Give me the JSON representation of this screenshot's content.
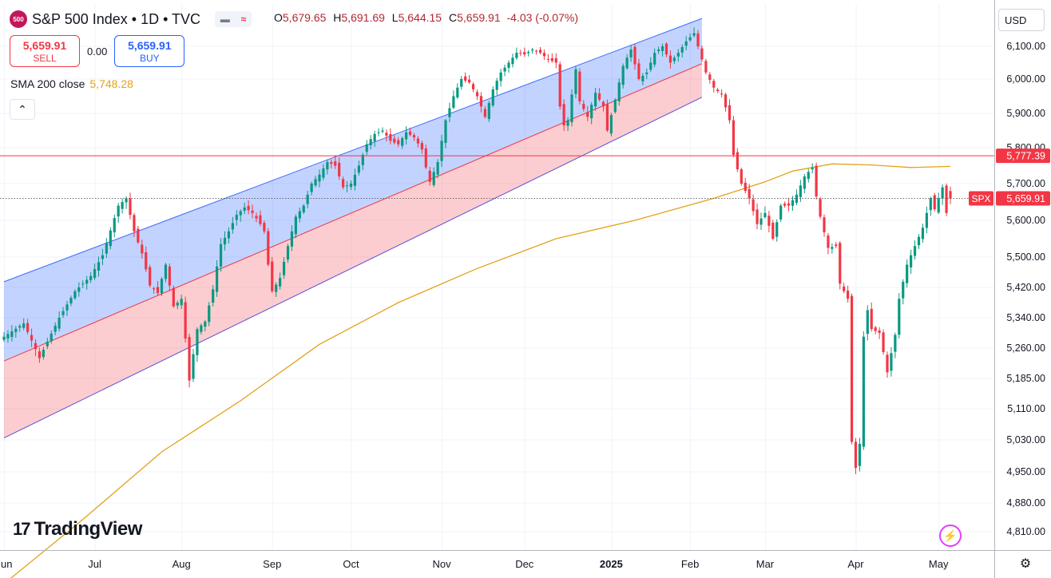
{
  "header": {
    "symbol_badge": "500",
    "title": "S&P 500 Index • 1D • TVC",
    "ohlc": {
      "o_label": "O",
      "o": "5,679.65",
      "h_label": "H",
      "h": "5,691.69",
      "l_label": "L",
      "l": "5,644.15",
      "c_label": "C",
      "c": "5,659.91",
      "change": "-4.03 (-0.07%)"
    }
  },
  "trade": {
    "sell_price": "5,659.91",
    "sell_label": "SELL",
    "spread": "0.00",
    "buy_price": "5,659.91",
    "buy_label": "BUY"
  },
  "indicator": {
    "name": "SMA 200 close",
    "value": "5,748.28",
    "color": "#e3a21a"
  },
  "currency": "USD",
  "brand": {
    "logo_mark": "17",
    "logo_text": "TradingView"
  },
  "colors": {
    "up": "#089981",
    "down": "#f23645",
    "sma": "#e3a21a",
    "channel_upper": "#3d6cff",
    "channel_lower": "#f23645",
    "grid": "#f0f3fa"
  },
  "chart_data": {
    "type": "candlestick",
    "y_range": [
      4780,
      6160
    ],
    "y_ticks": [
      "6,100.00",
      "6,000.00",
      "5,900.00",
      "5,800.00",
      "5,700.00",
      "5,600.00",
      "5,500.00",
      "5,420.00",
      "5,340.00",
      "5,260.00",
      "5,185.00",
      "5,110.00",
      "5,030.00",
      "4,950.00",
      "4,880.00",
      "4,810.00"
    ],
    "y_tick_values": [
      6100,
      6000,
      5900,
      5800,
      5700,
      5600,
      5500,
      5420,
      5340,
      5260,
      5185,
      5110,
      5030,
      4950,
      4880,
      4810
    ],
    "x_labels": [
      "Jun",
      "Jul",
      "Aug",
      "Sep",
      "Oct",
      "Nov",
      "Dec",
      "2025",
      "Feb",
      "Mar",
      "Apr",
      "May"
    ],
    "x_label_days": [
      0,
      23,
      45,
      68,
      88,
      111,
      132,
      154,
      174,
      193,
      216,
      237
    ],
    "last_day": 240,
    "price_lines": {
      "horizontal_level": {
        "value": 5777.39,
        "label": "5,777.39"
      },
      "last_price": {
        "value": 5659.91,
        "label": "5,659.91",
        "tag": "SPX"
      }
    },
    "sma200": [
      [
        0,
        4683
      ],
      [
        20,
        4840
      ],
      [
        40,
        5000
      ],
      [
        60,
        5130
      ],
      [
        80,
        5270
      ],
      [
        100,
        5380
      ],
      [
        120,
        5470
      ],
      [
        140,
        5550
      ],
      [
        160,
        5600
      ],
      [
        180,
        5660
      ],
      [
        193,
        5705
      ],
      [
        200,
        5735
      ],
      [
        210,
        5755
      ],
      [
        220,
        5752
      ],
      [
        230,
        5745
      ],
      [
        240,
        5748
      ]
    ],
    "channel": {
      "start_day": 0,
      "end_day": 177,
      "upper": [
        5435,
        6185
      ],
      "middle": [
        5228,
        6047
      ],
      "lower": [
        5035,
        5947
      ]
    },
    "ohlc_points": [
      [
        0,
        5290
      ],
      [
        5,
        5325
      ],
      [
        9,
        5235
      ],
      [
        14,
        5340
      ],
      [
        18,
        5410
      ],
      [
        22,
        5450
      ],
      [
        25,
        5505
      ],
      [
        29,
        5640
      ],
      [
        31,
        5660
      ],
      [
        33,
        5570
      ],
      [
        35,
        5510
      ],
      [
        37,
        5425
      ],
      [
        39,
        5405
      ],
      [
        41,
        5480
      ],
      [
        43,
        5370
      ],
      [
        45,
        5390
      ],
      [
        47,
        5180
      ],
      [
        49,
        5310
      ],
      [
        51,
        5330
      ],
      [
        53,
        5415
      ],
      [
        55,
        5535
      ],
      [
        57,
        5570
      ],
      [
        59,
        5615
      ],
      [
        61,
        5635
      ],
      [
        63,
        5620
      ],
      [
        65,
        5590
      ],
      [
        66,
        5570
      ],
      [
        67,
        5480
      ],
      [
        68,
        5410
      ],
      [
        70,
        5445
      ],
      [
        72,
        5530
      ],
      [
        74,
        5610
      ],
      [
        76,
        5640
      ],
      [
        78,
        5700
      ],
      [
        80,
        5725
      ],
      [
        82,
        5760
      ],
      [
        84,
        5750
      ],
      [
        86,
        5690
      ],
      [
        88,
        5700
      ],
      [
        90,
        5750
      ],
      [
        92,
        5810
      ],
      [
        94,
        5840
      ],
      [
        96,
        5850
      ],
      [
        98,
        5820
      ],
      [
        100,
        5810
      ],
      [
        102,
        5845
      ],
      [
        104,
        5830
      ],
      [
        106,
        5795
      ],
      [
        107,
        5745
      ],
      [
        108,
        5705
      ],
      [
        110,
        5760
      ],
      [
        112,
        5880
      ],
      [
        114,
        5950
      ],
      [
        116,
        6000
      ],
      [
        118,
        5990
      ],
      [
        120,
        5950
      ],
      [
        122,
        5890
      ],
      [
        124,
        5970
      ],
      [
        126,
        6020
      ],
      [
        128,
        6050
      ],
      [
        130,
        6080
      ],
      [
        132,
        6075
      ],
      [
        134,
        6090
      ],
      [
        136,
        6080
      ],
      [
        138,
        6060
      ],
      [
        140,
        6050
      ],
      [
        141,
        5920
      ],
      [
        142,
        5865
      ],
      [
        143,
        5880
      ],
      [
        145,
        6030
      ],
      [
        146,
        5935
      ],
      [
        148,
        5890
      ],
      [
        150,
        5960
      ],
      [
        152,
        5920
      ],
      [
        153,
        5850
      ],
      [
        155,
        5940
      ],
      [
        157,
        6040
      ],
      [
        159,
        6090
      ],
      [
        161,
        6000
      ],
      [
        163,
        6020
      ],
      [
        165,
        6080
      ],
      [
        167,
        6100
      ],
      [
        169,
        6050
      ],
      [
        171,
        6080
      ],
      [
        173,
        6115
      ],
      [
        175,
        6140
      ],
      [
        176,
        6100
      ],
      [
        178,
        6020
      ],
      [
        180,
        5975
      ],
      [
        182,
        5955
      ],
      [
        184,
        5880
      ],
      [
        185,
        5780
      ],
      [
        187,
        5700
      ],
      [
        189,
        5660
      ],
      [
        191,
        5590
      ],
      [
        193,
        5620
      ],
      [
        195,
        5550
      ],
      [
        197,
        5640
      ],
      [
        199,
        5640
      ],
      [
        201,
        5670
      ],
      [
        203,
        5720
      ],
      [
        205,
        5745
      ],
      [
        206,
        5665
      ],
      [
        207,
        5610
      ],
      [
        209,
        5525
      ],
      [
        211,
        5530
      ],
      [
        212,
        5430
      ],
      [
        214,
        5390
      ],
      [
        215,
        5025
      ],
      [
        216,
        4960
      ],
      [
        217,
        5020
      ],
      [
        218,
        5290
      ],
      [
        219,
        5360
      ],
      [
        220,
        5310
      ],
      [
        222,
        5300
      ],
      [
        224,
        5200
      ],
      [
        226,
        5295
      ],
      [
        227,
        5390
      ],
      [
        229,
        5480
      ],
      [
        231,
        5530
      ],
      [
        233,
        5580
      ],
      [
        235,
        5660
      ],
      [
        236,
        5630
      ],
      [
        238,
        5690
      ],
      [
        239,
        5620
      ],
      [
        240,
        5660
      ]
    ],
    "last_candle": {
      "open": 5679.65,
      "high": 5691.69,
      "low": 5644.15,
      "close": 5659.91
    }
  }
}
